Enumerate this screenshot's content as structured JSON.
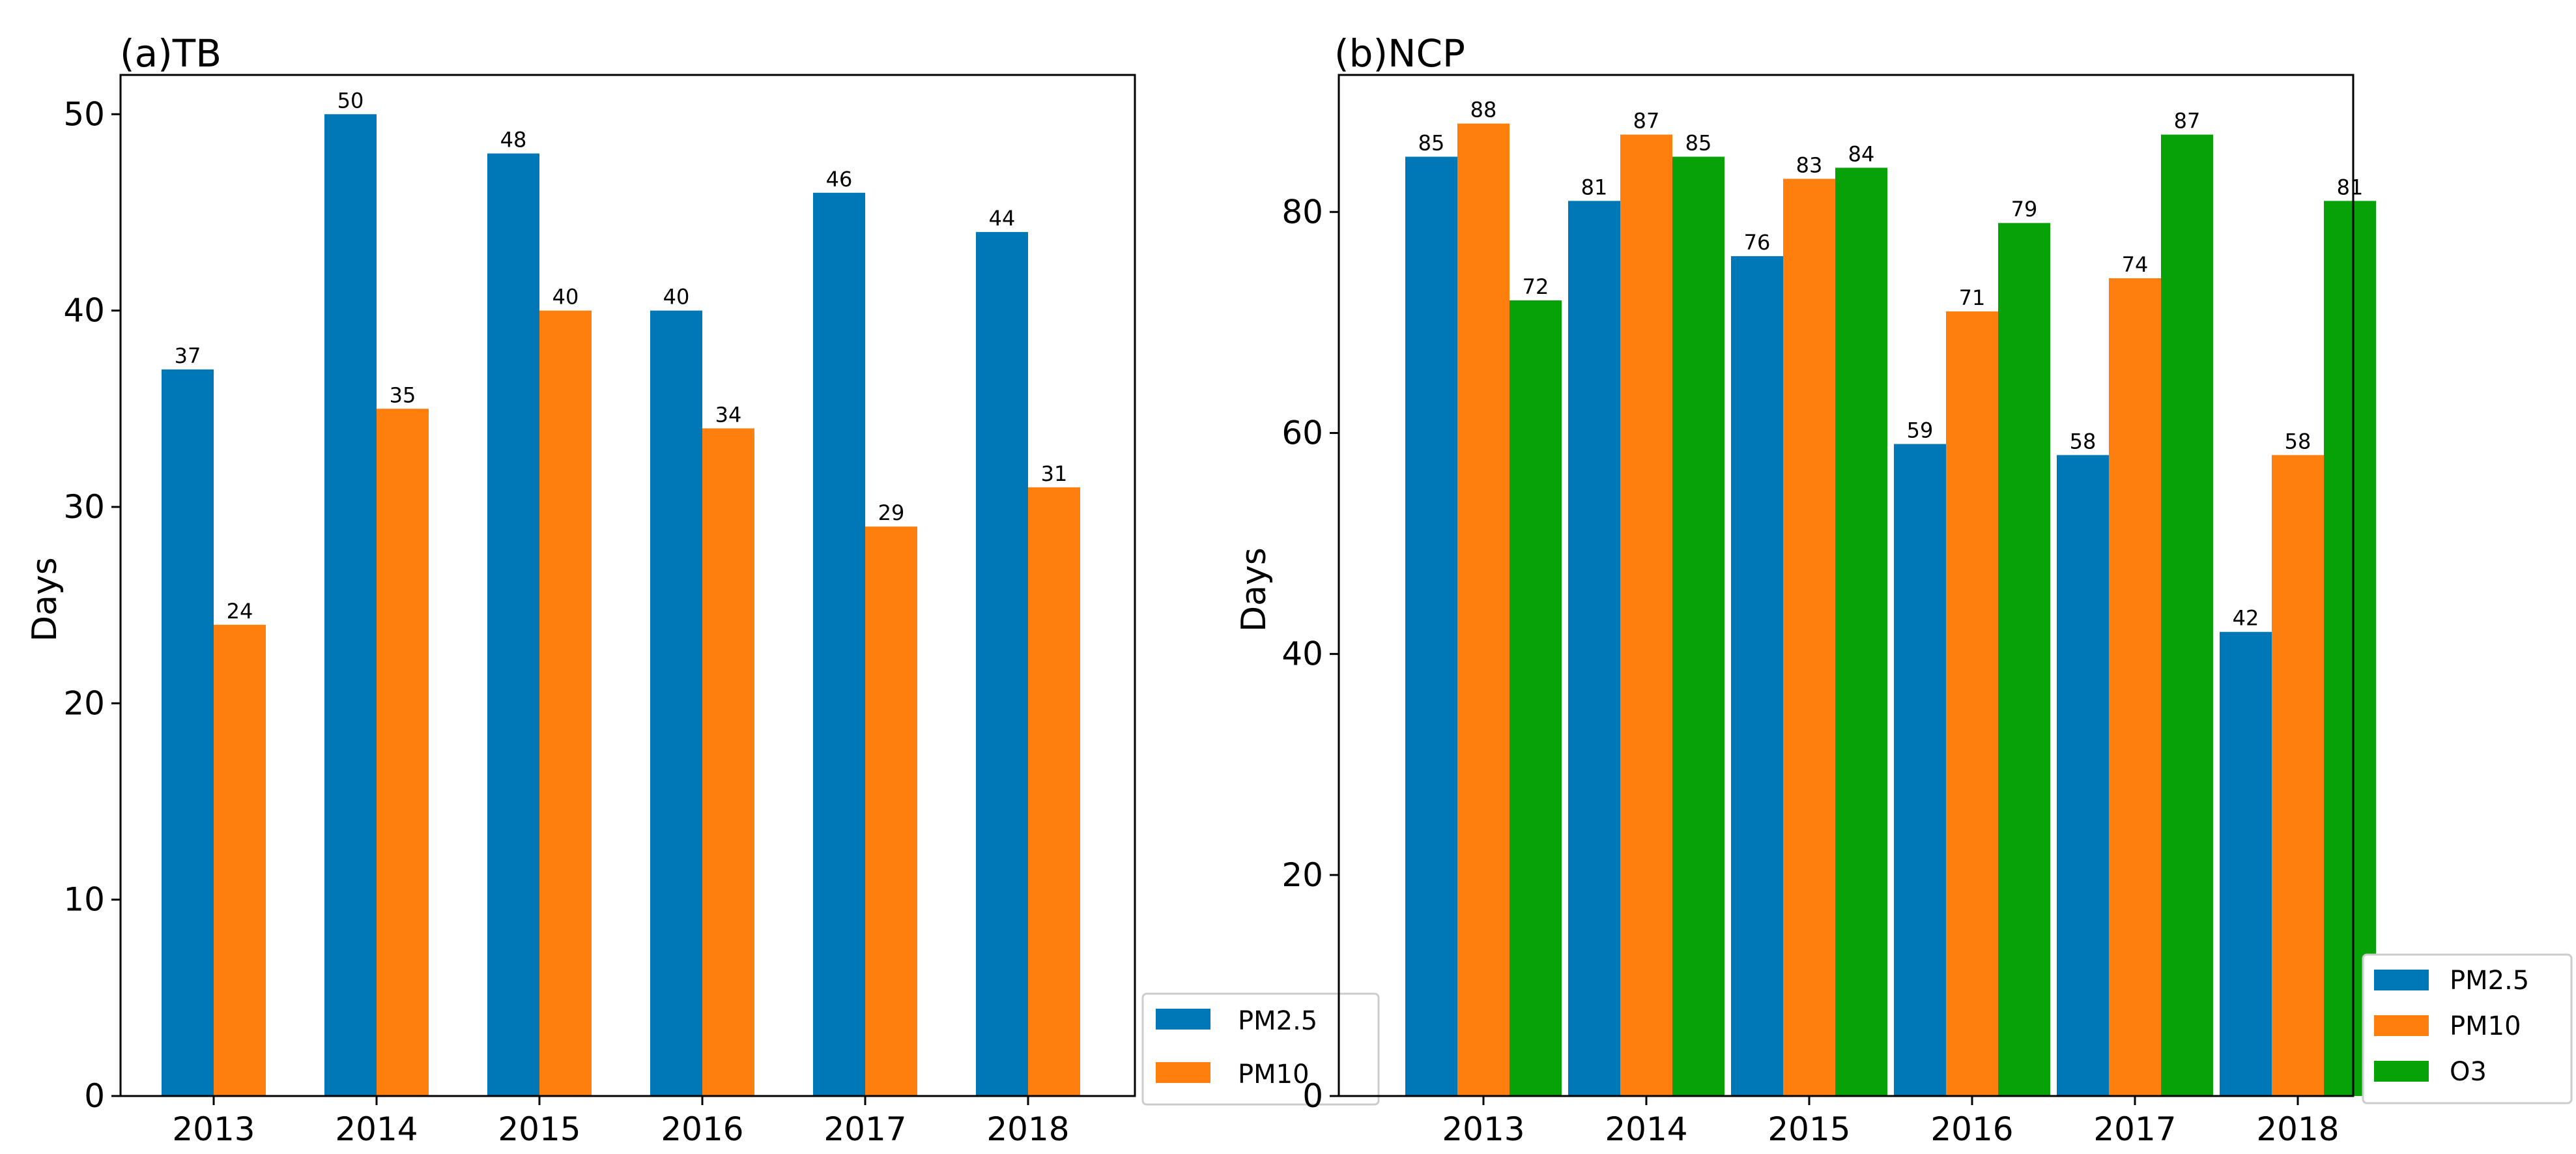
{
  "colors": {
    "PM2.5": "#0077b6",
    "PM10": "#ff7f0e",
    "O3": "#07a207",
    "axis": "#000000",
    "legend_border": "#cccccc"
  },
  "chart_data": [
    {
      "type": "bar",
      "title": "(a)TB",
      "xlabel": "",
      "ylabel": "Days",
      "ylim": [
        0,
        52
      ],
      "yticks": [
        0,
        10,
        20,
        30,
        40,
        50
      ],
      "categories": [
        "2013",
        "2014",
        "2015",
        "2016",
        "2017",
        "2018"
      ],
      "series": [
        {
          "name": "PM2.5",
          "values": [
            37,
            50,
            48,
            40,
            46,
            44
          ]
        },
        {
          "name": "PM10",
          "values": [
            24,
            35,
            40,
            34,
            29,
            31
          ]
        }
      ],
      "legend": {
        "placement": "outside-bottom-right",
        "entries": [
          "PM2.5",
          "PM10"
        ]
      },
      "grid": false
    },
    {
      "type": "bar",
      "title": "(b)NCP",
      "xlabel": "",
      "ylabel": "Days",
      "ylim": [
        0,
        92.4
      ],
      "yticks": [
        0,
        20,
        40,
        60,
        80
      ],
      "categories": [
        "2013",
        "2014",
        "2015",
        "2016",
        "2017",
        "2018"
      ],
      "series": [
        {
          "name": "PM2.5",
          "values": [
            85,
            81,
            76,
            59,
            58,
            42
          ]
        },
        {
          "name": "PM10",
          "values": [
            88,
            87,
            83,
            71,
            74,
            58
          ]
        },
        {
          "name": "O3",
          "values": [
            72,
            85,
            84,
            79,
            87,
            81
          ]
        }
      ],
      "legend": {
        "placement": "outside-bottom-right",
        "entries": [
          "PM2.5",
          "PM10",
          "O3"
        ]
      },
      "grid": false
    }
  ]
}
